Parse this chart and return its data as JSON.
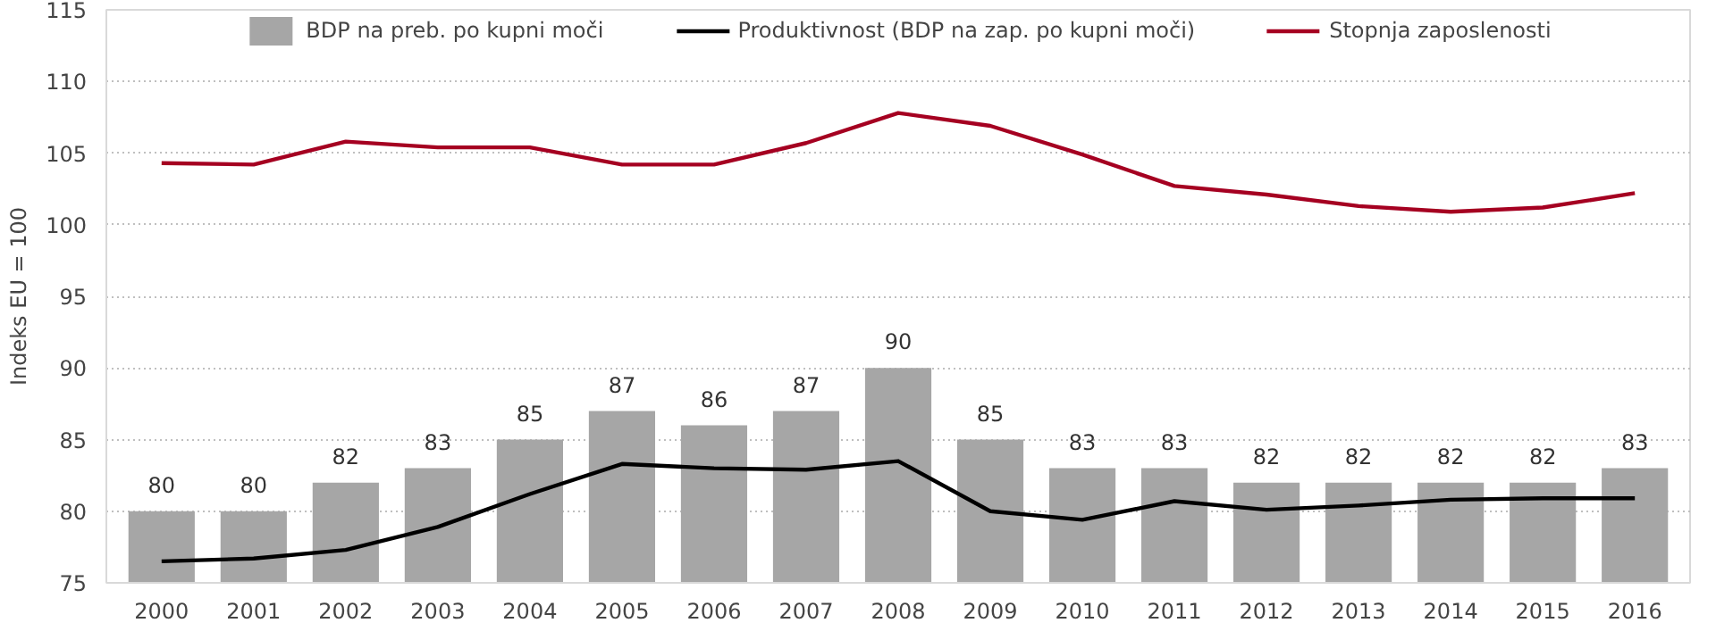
{
  "chart_data": {
    "type": "bar",
    "ylabel": "Indeks EU = 100",
    "categories": [
      "2000",
      "2001",
      "2002",
      "2003",
      "2004",
      "2005",
      "2006",
      "2007",
      "2008",
      "2009",
      "2010",
      "2011",
      "2012",
      "2013",
      "2014",
      "2015",
      "2016"
    ],
    "series": [
      {
        "name": "BDP na preb. po kupni moči",
        "color": "#a6a6a6",
        "data_labels": true,
        "values": [
          80,
          80,
          82,
          83,
          85,
          87,
          86,
          87,
          90,
          85,
          83,
          83,
          82,
          82,
          82,
          82,
          83
        ]
      },
      {
        "name": "Produktivnost (BDP na zap. po kupni moči)",
        "color": "#000000",
        "type": "line",
        "values": [
          76.5,
          76.7,
          77.3,
          78.9,
          81.2,
          83.3,
          83.0,
          82.9,
          83.5,
          80.0,
          79.4,
          80.7,
          80.1,
          80.4,
          80.8,
          80.9,
          80.9
        ]
      },
      {
        "name": "Stopnja zaposlenosti",
        "color": "#a50021",
        "type": "line",
        "values": [
          104.3,
          104.2,
          105.8,
          105.4,
          105.4,
          104.2,
          104.2,
          105.7,
          107.8,
          106.9,
          104.9,
          102.7,
          102.1,
          101.3,
          100.9,
          101.2,
          102.2
        ]
      }
    ],
    "ylim": [
      75,
      115
    ],
    "yticks": [
      75,
      80,
      85,
      90,
      95,
      100,
      105,
      110,
      115
    ],
    "grid": "y",
    "legend": "top",
    "marker": "none",
    "line_style": "solid"
  }
}
